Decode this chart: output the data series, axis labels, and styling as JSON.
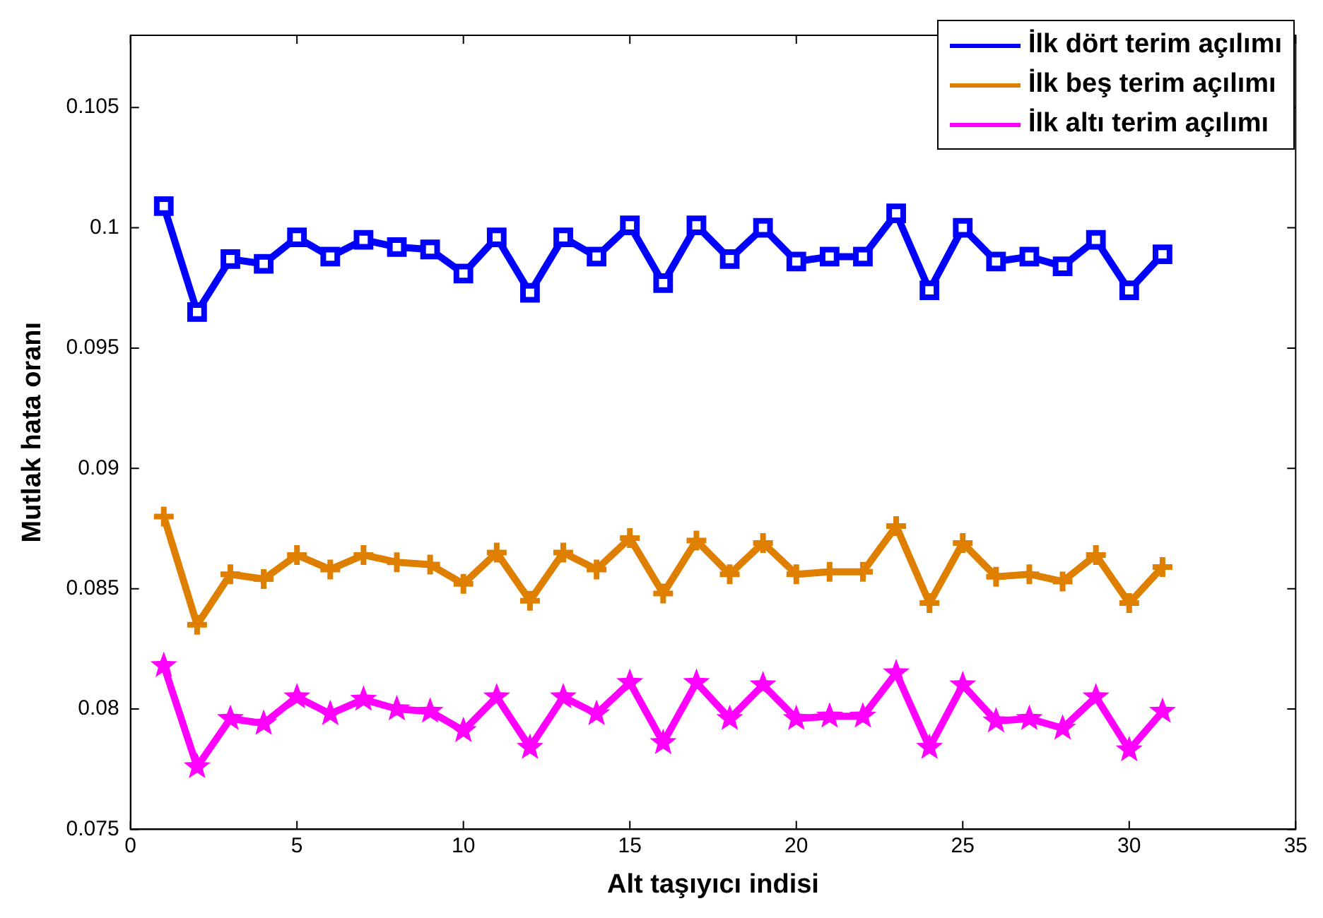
{
  "chart_data": {
    "type": "line",
    "xlabel": "Alt taşıyıcı indisi",
    "ylabel": "Mutlak hata oranı",
    "x": [
      1,
      2,
      3,
      4,
      5,
      6,
      7,
      8,
      9,
      10,
      11,
      12,
      13,
      14,
      15,
      16,
      17,
      18,
      19,
      20,
      21,
      22,
      23,
      24,
      25,
      26,
      27,
      28,
      29,
      30,
      31
    ],
    "series": [
      {
        "name": "İlk dört terim açılımı",
        "color": "#0000ff",
        "marker": "square",
        "values": [
          0.1009,
          0.0965,
          0.0987,
          0.0985,
          0.0996,
          0.0988,
          0.0995,
          0.0992,
          0.0991,
          0.0981,
          0.0996,
          0.0973,
          0.0996,
          0.0988,
          0.1001,
          0.0977,
          0.1001,
          0.0987,
          0.1,
          0.0986,
          0.0988,
          0.0988,
          0.1006,
          0.0974,
          0.1,
          0.0986,
          0.0988,
          0.0984,
          0.0995,
          0.0974,
          0.0989
        ]
      },
      {
        "name": "İlk beş terim açılımı",
        "color": "#df7f00",
        "marker": "cross",
        "values": [
          0.088,
          0.0835,
          0.0856,
          0.0854,
          0.0864,
          0.0858,
          0.0864,
          0.0861,
          0.086,
          0.0852,
          0.0865,
          0.0845,
          0.0865,
          0.0858,
          0.0871,
          0.0848,
          0.087,
          0.0856,
          0.0869,
          0.0856,
          0.0857,
          0.0857,
          0.0876,
          0.0844,
          0.0869,
          0.0855,
          0.0856,
          0.0853,
          0.0864,
          0.0844,
          0.0859
        ]
      },
      {
        "name": "İlk altı terim açılımı",
        "color": "#ff00ff",
        "marker": "star",
        "values": [
          0.0818,
          0.0776,
          0.0796,
          0.0794,
          0.0805,
          0.0798,
          0.0804,
          0.08,
          0.0799,
          0.0791,
          0.0805,
          0.0784,
          0.0805,
          0.0798,
          0.0811,
          0.0786,
          0.0811,
          0.0796,
          0.081,
          0.0796,
          0.0797,
          0.0797,
          0.0815,
          0.0784,
          0.081,
          0.0795,
          0.0796,
          0.0792,
          0.0805,
          0.0783,
          0.0799
        ]
      }
    ],
    "xlim": [
      0,
      35
    ],
    "xticks": [
      0,
      5,
      10,
      15,
      20,
      25,
      30,
      35
    ],
    "ylim": [
      0.075,
      0.108
    ],
    "yticks": [
      0.075,
      0.08,
      0.085,
      0.09,
      0.095,
      0.1,
      0.105
    ],
    "grid": false,
    "legend": "top right",
    "line_style": "solid"
  }
}
